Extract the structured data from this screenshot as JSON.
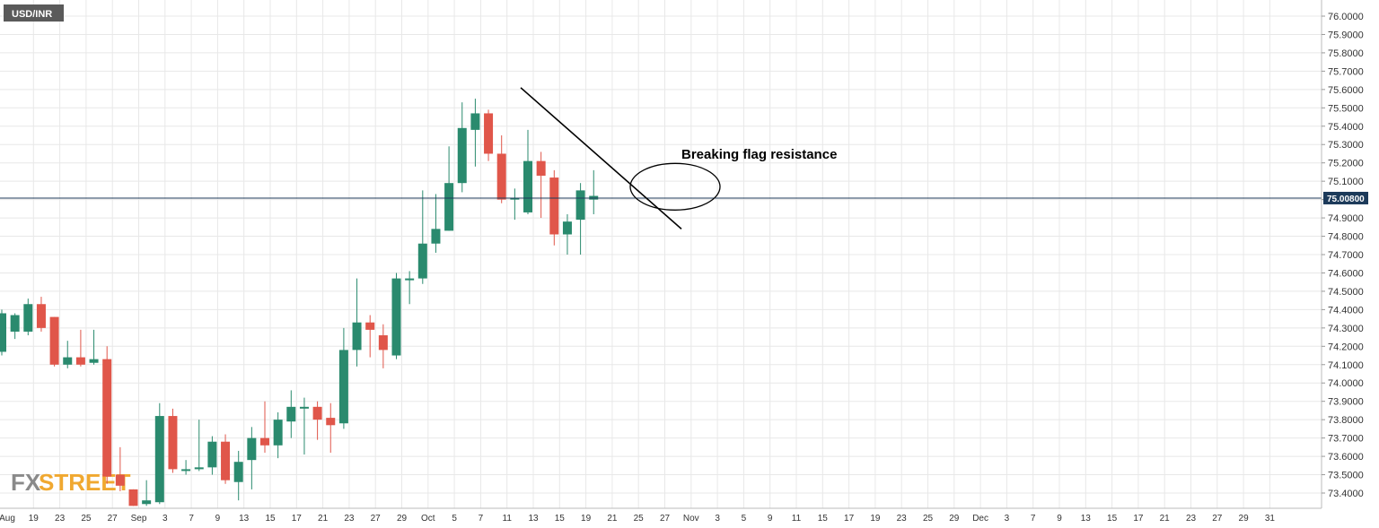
{
  "chart_data": {
    "type": "candlestick",
    "symbol": "USD/INR",
    "y_ticks": [
      "76.0000",
      "75.9000",
      "75.8000",
      "75.7000",
      "75.6000",
      "75.5000",
      "75.4000",
      "75.3000",
      "75.2000",
      "75.1000",
      "75.0000",
      "74.9000",
      "74.8000",
      "74.7000",
      "74.6000",
      "74.5000",
      "74.4000",
      "74.3000",
      "74.2000",
      "74.1000",
      "74.0000",
      "73.9000",
      "73.8000",
      "73.7000",
      "73.6000",
      "73.5000",
      "73.4000"
    ],
    "ylim": [
      73.33,
      76.07
    ],
    "x_ticks": [
      "Aug",
      "19",
      "23",
      "25",
      "27",
      "Sep",
      "3",
      "7",
      "9",
      "13",
      "15",
      "17",
      "21",
      "23",
      "27",
      "29",
      "Oct",
      "5",
      "7",
      "11",
      "13",
      "15",
      "19",
      "21",
      "25",
      "27",
      "Nov",
      "3",
      "5",
      "9",
      "11",
      "15",
      "17",
      "19",
      "23",
      "25",
      "29",
      "Dec",
      "3",
      "7",
      "9",
      "13",
      "15",
      "17",
      "21",
      "23",
      "27",
      "29",
      "31"
    ],
    "current_price": 75.008,
    "current_price_label": "75.00800",
    "annotation": "Breaking flag resistance",
    "colors": {
      "up": "#2a8a6e",
      "down": "#e0564a",
      "price_line": "#1c3a5a",
      "grid": "#e8e8e8"
    },
    "candles": [
      {
        "o": 74.17,
        "h": 74.4,
        "l": 74.15,
        "c": 74.38
      },
      {
        "o": 74.28,
        "h": 74.38,
        "l": 74.24,
        "c": 74.37
      },
      {
        "o": 74.28,
        "h": 74.46,
        "l": 74.26,
        "c": 74.43
      },
      {
        "o": 74.43,
        "h": 74.47,
        "l": 74.28,
        "c": 74.3
      },
      {
        "o": 74.36,
        "h": 74.36,
        "l": 74.09,
        "c": 74.1
      },
      {
        "o": 74.1,
        "h": 74.23,
        "l": 74.08,
        "c": 74.14
      },
      {
        "o": 74.14,
        "h": 74.29,
        "l": 74.09,
        "c": 74.1
      },
      {
        "o": 74.11,
        "h": 74.29,
        "l": 74.1,
        "c": 74.13
      },
      {
        "o": 74.13,
        "h": 74.2,
        "l": 73.45,
        "c": 73.49
      },
      {
        "o": 73.5,
        "h": 73.65,
        "l": 73.41,
        "c": 73.44
      },
      {
        "o": 73.42,
        "h": 73.42,
        "l": 73.33,
        "c": 73.33
      },
      {
        "o": 73.34,
        "h": 73.47,
        "l": 73.33,
        "c": 73.36
      },
      {
        "o": 73.35,
        "h": 73.89,
        "l": 73.34,
        "c": 73.82
      },
      {
        "o": 73.82,
        "h": 73.86,
        "l": 73.51,
        "c": 73.53
      },
      {
        "o": 73.53,
        "h": 73.58,
        "l": 73.5,
        "c": 73.53
      },
      {
        "o": 73.53,
        "h": 73.8,
        "l": 73.52,
        "c": 73.54
      },
      {
        "o": 73.54,
        "h": 73.71,
        "l": 73.5,
        "c": 73.68
      },
      {
        "o": 73.68,
        "h": 73.72,
        "l": 73.45,
        "c": 73.47
      },
      {
        "o": 73.46,
        "h": 73.63,
        "l": 73.36,
        "c": 73.57
      },
      {
        "o": 73.58,
        "h": 73.76,
        "l": 73.42,
        "c": 73.7
      },
      {
        "o": 73.7,
        "h": 73.9,
        "l": 73.62,
        "c": 73.66
      },
      {
        "o": 73.66,
        "h": 73.84,
        "l": 73.59,
        "c": 73.8
      },
      {
        "o": 73.79,
        "h": 73.96,
        "l": 73.7,
        "c": 73.87
      },
      {
        "o": 73.87,
        "h": 73.92,
        "l": 73.61,
        "c": 73.87
      },
      {
        "o": 73.87,
        "h": 73.9,
        "l": 73.69,
        "c": 73.8
      },
      {
        "o": 73.81,
        "h": 73.89,
        "l": 73.62,
        "c": 73.77
      },
      {
        "o": 73.78,
        "h": 74.3,
        "l": 73.75,
        "c": 74.18
      },
      {
        "o": 74.18,
        "h": 74.57,
        "l": 74.09,
        "c": 74.33
      },
      {
        "o": 74.33,
        "h": 74.37,
        "l": 74.14,
        "c": 74.29
      },
      {
        "o": 74.26,
        "h": 74.32,
        "l": 74.08,
        "c": 74.18
      },
      {
        "o": 74.15,
        "h": 74.6,
        "l": 74.13,
        "c": 74.57
      },
      {
        "o": 74.56,
        "h": 74.61,
        "l": 74.43,
        "c": 74.57
      },
      {
        "o": 74.57,
        "h": 75.05,
        "l": 74.54,
        "c": 74.76
      },
      {
        "o": 74.76,
        "h": 75.03,
        "l": 74.71,
        "c": 74.84
      },
      {
        "o": 74.83,
        "h": 75.29,
        "l": 74.83,
        "c": 75.09
      },
      {
        "o": 75.09,
        "h": 75.53,
        "l": 75.04,
        "c": 75.39
      },
      {
        "o": 75.38,
        "h": 75.55,
        "l": 75.18,
        "c": 75.47
      },
      {
        "o": 75.47,
        "h": 75.49,
        "l": 75.21,
        "c": 75.25
      },
      {
        "o": 75.25,
        "h": 75.35,
        "l": 74.98,
        "c": 75.0
      },
      {
        "o": 75.0,
        "h": 75.06,
        "l": 74.89,
        "c": 75.01
      },
      {
        "o": 74.93,
        "h": 75.38,
        "l": 74.92,
        "c": 75.21
      },
      {
        "o": 75.21,
        "h": 75.26,
        "l": 74.9,
        "c": 75.13
      },
      {
        "o": 75.12,
        "h": 75.16,
        "l": 74.75,
        "c": 74.81
      },
      {
        "o": 74.81,
        "h": 74.92,
        "l": 74.7,
        "c": 74.88
      },
      {
        "o": 74.89,
        "h": 75.09,
        "l": 74.7,
        "c": 75.05
      },
      {
        "o": 75.0,
        "h": 75.16,
        "l": 74.92,
        "c": 75.02
      }
    ]
  }
}
